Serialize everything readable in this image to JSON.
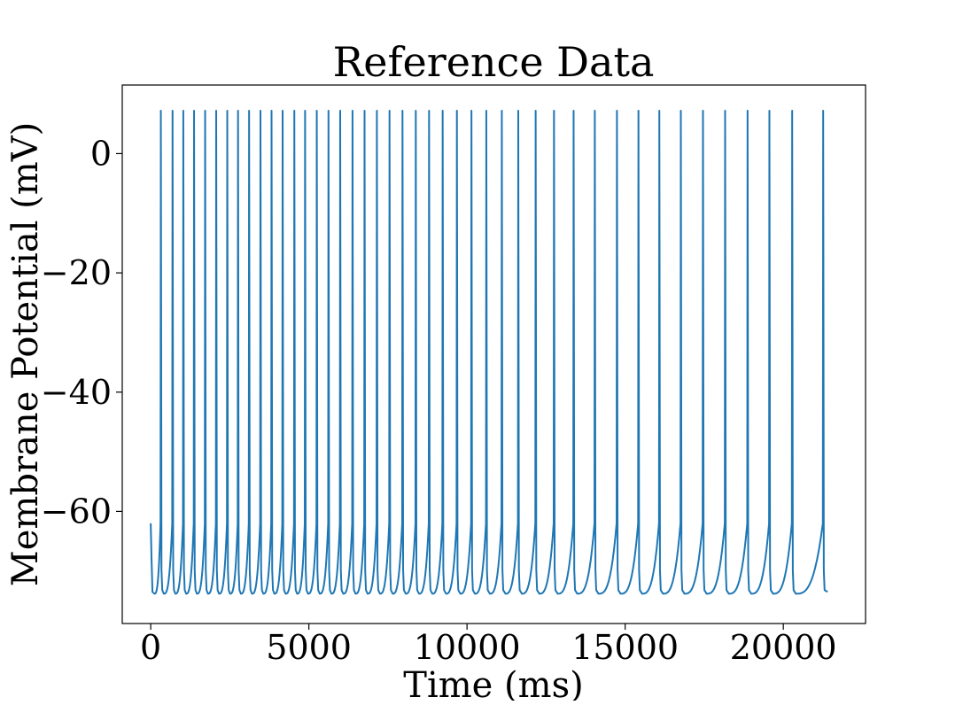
{
  "chart_data": {
    "type": "line",
    "title": "Reference Data",
    "xlabel": "Time (ms)",
    "ylabel": "Membrane Potential (mV)",
    "xlim": [
      -900,
      22600
    ],
    "ylim": [
      -78.8,
      11.5
    ],
    "xticks": [
      0,
      5000,
      10000,
      15000,
      20000
    ],
    "xtick_labels": [
      "0",
      "5000",
      "10000",
      "15000",
      "20000"
    ],
    "yticks": [
      0,
      -20,
      -40,
      -60
    ],
    "ytick_labels": [
      "0",
      "−20",
      "−40",
      "−60"
    ],
    "grid": false,
    "series": [
      {
        "name": "Reference Data",
        "color": "#1f77b4",
        "start_value": -62,
        "end_time": 21400,
        "end_value": -73.5,
        "trough_value": -73.8,
        "threshold_value": -62,
        "peak_value": 7.2,
        "spike_times": [
          320,
          690,
          1030,
          1370,
          1720,
          2070,
          2420,
          2760,
          3110,
          3470,
          3820,
          4170,
          4540,
          4880,
          5250,
          5620,
          5990,
          6380,
          6760,
          7150,
          7550,
          7960,
          8380,
          8800,
          9230,
          9680,
          10140,
          10610,
          11100,
          11620,
          12170,
          12750,
          13370,
          14040,
          14740,
          15420,
          16080,
          16760,
          17460,
          18160,
          18870,
          19560,
          20280,
          21260
        ]
      }
    ]
  }
}
